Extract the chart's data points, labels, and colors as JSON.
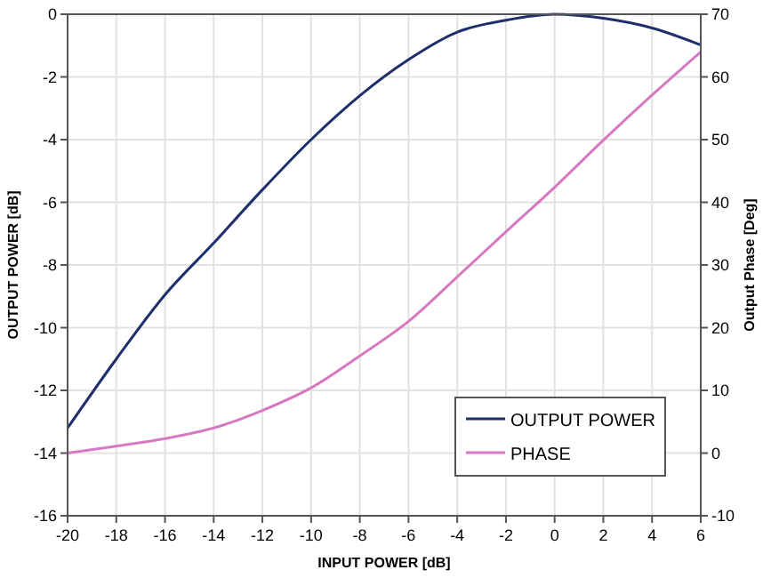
{
  "chart_data": {
    "type": "line",
    "xlabel": "INPUT POWER [dB]",
    "ylabel": "OUTPUT POWER [dB]",
    "y2label": "Output Phase [Deg]",
    "x": [
      -20,
      -18,
      -16,
      -14,
      -12,
      -10,
      -8,
      -6,
      -4,
      -2,
      0,
      2,
      4,
      6
    ],
    "series": [
      {
        "name": "OUTPUT POWER",
        "color": "#1f2f6b",
        "values": [
          -13.2,
          -11,
          -8.95,
          -7.3,
          -5.6,
          -4,
          -2.6,
          -1.45,
          -0.57,
          -0.19,
          0,
          -0.13,
          -0.44,
          -0.98
        ]
      },
      {
        "name": "PHASE",
        "color": "#d678c2",
        "axis": "y2",
        "values": [
          0,
          1.1,
          2.3,
          4,
          6.8,
          10.4,
          15.5,
          21,
          28.1,
          35.3,
          42.4,
          49.9,
          57.1,
          64
        ]
      }
    ],
    "xlim": [
      -20,
      6
    ],
    "xticks": [
      -20,
      -18,
      -16,
      -14,
      -12,
      -10,
      -8,
      -6,
      -4,
      -2,
      0,
      2,
      4,
      6
    ],
    "ylim": [
      -16,
      0
    ],
    "yticks": [
      -16,
      -14,
      -12,
      -10,
      -8,
      -6,
      -4,
      -2,
      0
    ],
    "y2lim": [
      -10,
      70
    ],
    "y2ticks": [
      -10,
      0,
      10,
      20,
      30,
      40,
      50,
      60,
      70
    ],
    "grid": true,
    "legend": "bottom right",
    "line_style": "solid",
    "marker": "none"
  }
}
